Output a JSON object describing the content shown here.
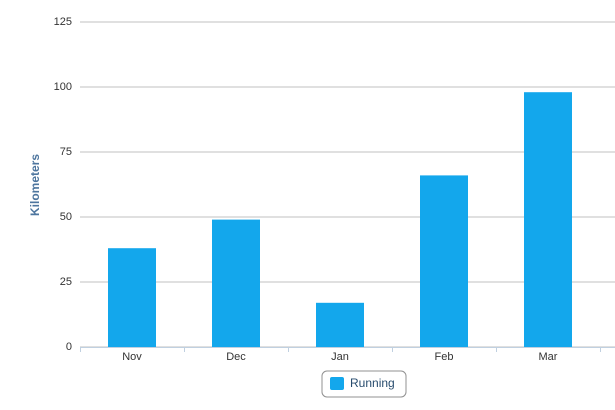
{
  "chart_data": {
    "type": "bar",
    "y_label": "Kilometers",
    "categories": [
      "Nov",
      "Dec",
      "Jan",
      "Feb",
      "Mar"
    ],
    "series": [
      {
        "name": "Running",
        "color": "#13a7ec",
        "values": [
          38,
          49,
          17,
          66,
          98
        ]
      }
    ],
    "ylim": [
      0,
      125
    ],
    "yticks": [
      0,
      25,
      50,
      75,
      100,
      125
    ],
    "grid": true
  }
}
